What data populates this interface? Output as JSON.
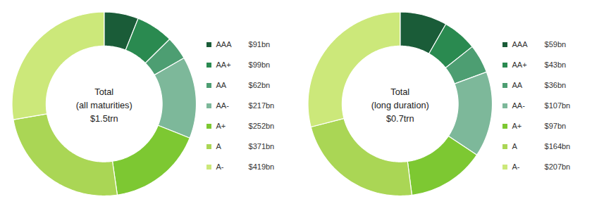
{
  "chart_data": [
    {
      "type": "pie",
      "title": "Total\n(all maturities)\n$1.5trn",
      "categories": [
        "AAA",
        "AA+",
        "AA",
        "AA-",
        "A+",
        "A",
        "A-"
      ],
      "values": [
        91,
        99,
        62,
        217,
        252,
        371,
        419
      ],
      "value_labels": [
        "$91bn",
        "$99bn",
        "$62bn",
        "$217bn",
        "$252bn",
        "$371bn",
        "$419bn"
      ],
      "colors": [
        "#1a5c38",
        "#2a8a50",
        "#4d9e72",
        "#7db89a",
        "#7dc832",
        "#aad655",
        "#cce87a"
      ],
      "legend": "right"
    },
    {
      "type": "pie",
      "title": "Total\n(long duration)\n$0.7trn",
      "categories": [
        "AAA",
        "AA+",
        "AA",
        "AA-",
        "A+",
        "A",
        "A-"
      ],
      "values": [
        59,
        43,
        36,
        107,
        97,
        164,
        207
      ],
      "value_labels": [
        "$59bn",
        "$43bn",
        "$36bn",
        "$107bn",
        "$97bn",
        "$164bn",
        "$207bn"
      ],
      "colors": [
        "#1a5c38",
        "#2a8a50",
        "#4d9e72",
        "#7db89a",
        "#7dc832",
        "#aad655",
        "#cce87a"
      ],
      "legend": "right"
    }
  ]
}
